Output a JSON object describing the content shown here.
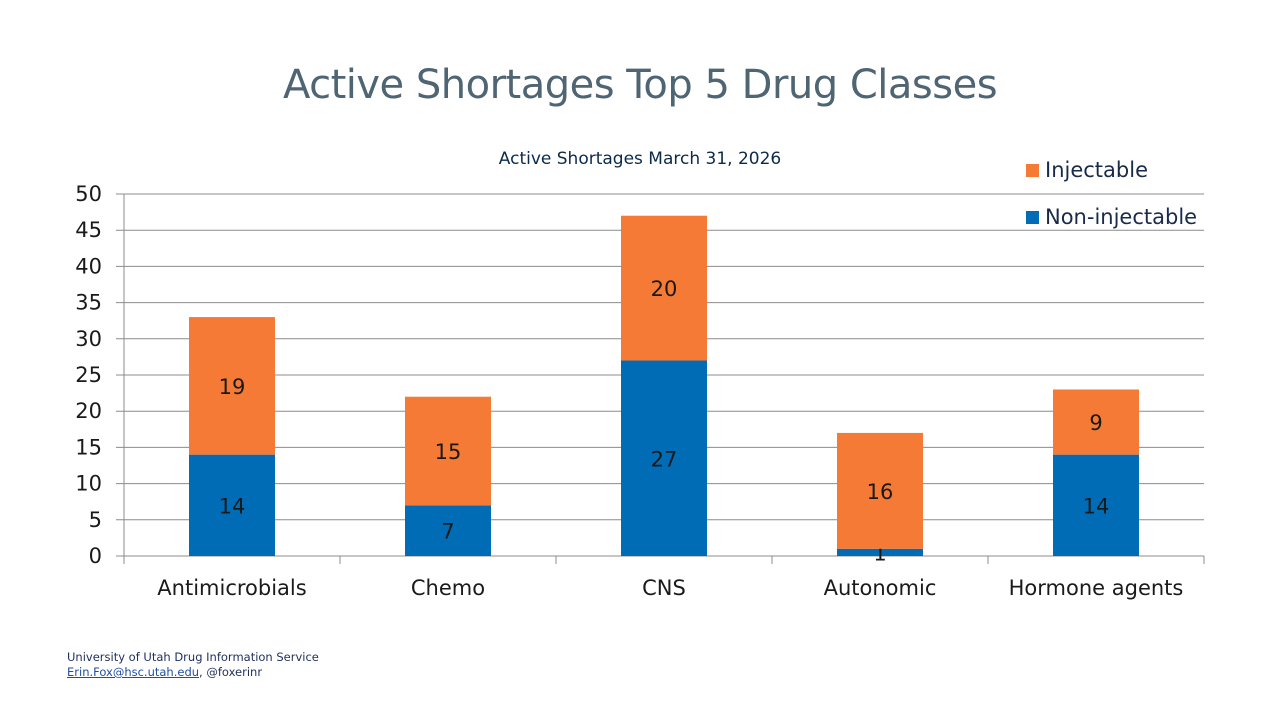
{
  "slide": {
    "title": "Active Shortages Top 5 Drug Classes"
  },
  "chart_data": {
    "type": "bar",
    "stacked": true,
    "title": "Active Shortages March 31, 2026",
    "categories": [
      "Antimicrobials",
      "Chemo",
      "CNS",
      "Autonomic",
      "Hormone agents"
    ],
    "series": [
      {
        "name": "Non-injectable",
        "color": "#006cb5",
        "values": [
          14,
          7,
          27,
          1,
          14
        ]
      },
      {
        "name": "Injectable",
        "color": "#f47a35",
        "values": [
          19,
          15,
          20,
          16,
          9
        ]
      }
    ],
    "yticks": [
      "0",
      "5",
      "10",
      "15",
      "20",
      "25",
      "30",
      "35",
      "40",
      "45",
      "50"
    ],
    "ylim": [
      0,
      50
    ],
    "grid": true,
    "legend_position": "top-right",
    "legend_order": [
      "Injectable",
      "Non-injectable"
    ]
  },
  "footer": {
    "line1": "University of Utah Drug Information Service",
    "email": "Erin.Fox@hsc.utah.edu",
    "line2_suffix": ", @foxerinr"
  }
}
